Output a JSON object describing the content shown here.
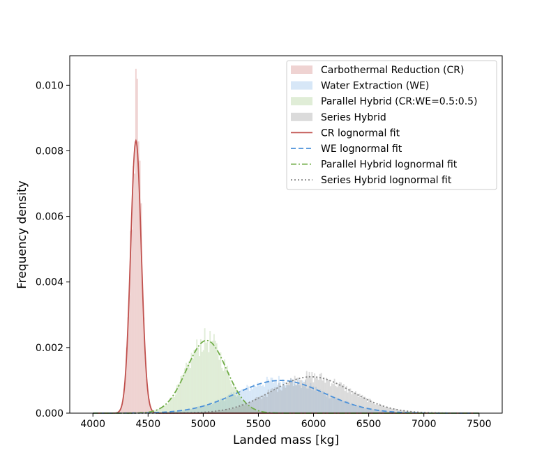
{
  "chart_data": {
    "type": "histogram",
    "title": "",
    "xlabel": "Landed mass [kg]",
    "ylabel": "Frequency density",
    "xlim": [
      3790,
      7710
    ],
    "ylim": [
      0,
      0.0109
    ],
    "xticks": [
      4000,
      4500,
      5000,
      5500,
      6000,
      6500,
      7000,
      7500
    ],
    "xtick_labels": [
      "4000",
      "4500",
      "5000",
      "5500",
      "6000",
      "6500",
      "7000",
      "7500"
    ],
    "yticks": [
      0.0,
      0.002,
      0.004,
      0.006,
      0.008,
      0.01
    ],
    "ytick_labels": [
      "0.000",
      "0.002",
      "0.004",
      "0.006",
      "0.008",
      "0.010"
    ],
    "grid": false,
    "legend_position": "top-right",
    "histograms": [
      {
        "name": "Carbothermal Reduction (CR)",
        "color": "#c0504d",
        "alpha": 0.25,
        "mu": 4390,
        "sigma": 48,
        "bin_width": 12,
        "range": [
          4000,
          7500
        ],
        "peaks": [
          [
            4385,
            0.0105
          ],
          [
            4403,
            0.0102
          ],
          [
            4427,
            0.0077
          ],
          [
            4439,
            0.0064
          ]
        ]
      },
      {
        "name": "Water Extraction (WE)",
        "color": "#4a90d9",
        "alpha": 0.22,
        "mu": 5700,
        "sigma": 400,
        "bin_width": 12,
        "range": [
          4000,
          7500
        ]
      },
      {
        "name": "Parallel Hybrid (CR:WE=0.5:0.5)",
        "color": "#70ad47",
        "alpha": 0.22,
        "mu": 5030,
        "sigma": 180,
        "bin_width": 12,
        "range": [
          4000,
          7500
        ]
      },
      {
        "name": "Series Hybrid",
        "color": "#999999",
        "alpha": 0.35,
        "mu": 5980,
        "sigma": 360,
        "bin_width": 12,
        "range": [
          4000,
          7500
        ]
      }
    ],
    "fits": [
      {
        "name": "CR lognormal fit",
        "color": "#c0504d",
        "dash": "solid",
        "mu": 4390,
        "sigma": 48
      },
      {
        "name": "WE lognormal fit",
        "color": "#4a90d9",
        "dash": "dashed",
        "mu": 5700,
        "sigma": 400
      },
      {
        "name": "Parallel Hybrid lognormal fit",
        "color": "#70ad47",
        "dash": "dashdot",
        "mu": 5030,
        "sigma": 180
      },
      {
        "name": "Series Hybrid lognormal fit",
        "color": "#808080",
        "dash": "dotted",
        "mu": 5980,
        "sigma": 360
      }
    ]
  }
}
